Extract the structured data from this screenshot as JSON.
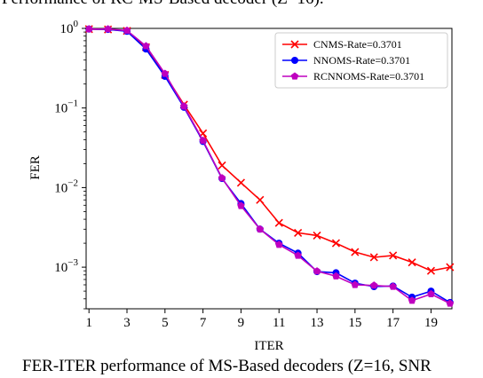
{
  "caption_top": "Performance of RC-MS-Based decoder (Z=16).",
  "caption_bottom": "FER-ITER performance of MS-Based decoders (Z=16, SNR",
  "chart_data": {
    "type": "line",
    "xlabel": "ITER",
    "ylabel": "FER",
    "xlim": [
      0.85,
      20.1
    ],
    "ylim": [
      0.0003,
      1.0
    ],
    "yscale": "log",
    "grid": false,
    "legend_position": "top-right",
    "x_ticks": [
      1,
      3,
      5,
      7,
      9,
      11,
      13,
      15,
      17,
      19
    ],
    "y_ticks": [
      {
        "value": 1.0,
        "base": "10",
        "exp": "0"
      },
      {
        "value": 0.1,
        "base": "10",
        "exp": "−1"
      },
      {
        "value": 0.01,
        "base": "10",
        "exp": "−2"
      },
      {
        "value": 0.001,
        "base": "10",
        "exp": "−3"
      }
    ],
    "x": [
      1,
      2,
      3,
      4,
      5,
      6,
      7,
      8,
      9,
      10,
      11,
      12,
      13,
      14,
      15,
      16,
      17,
      18,
      19,
      20
    ],
    "series": [
      {
        "name": "CNMS-Rate=0.3701",
        "color": "#ff0000",
        "marker": "x",
        "values": [
          0.98,
          0.97,
          0.93,
          0.58,
          0.26,
          0.11,
          0.048,
          0.019,
          0.0115,
          0.007,
          0.0036,
          0.0027,
          0.0025,
          0.002,
          0.00155,
          0.00133,
          0.0014,
          0.00115,
          0.0009,
          0.001
        ]
      },
      {
        "name": "NNOMS-Rate=0.3701",
        "color": "#0000ff",
        "marker": "circle",
        "values": [
          0.98,
          0.97,
          0.92,
          0.55,
          0.25,
          0.102,
          0.038,
          0.013,
          0.0063,
          0.003,
          0.002,
          0.0015,
          0.00088,
          0.00085,
          0.00063,
          0.00057,
          0.00058,
          0.00042,
          0.0005,
          0.00036
        ]
      },
      {
        "name": "RCNNOMS-Rate=0.3701",
        "color": "#bf00bf",
        "marker": "pentagon",
        "values": [
          0.98,
          0.98,
          0.94,
          0.6,
          0.27,
          0.105,
          0.039,
          0.0132,
          0.0059,
          0.003,
          0.00192,
          0.0014,
          0.00089,
          0.00077,
          0.0006,
          0.00059,
          0.00057,
          0.00038,
          0.00046,
          0.00035
        ]
      }
    ]
  }
}
